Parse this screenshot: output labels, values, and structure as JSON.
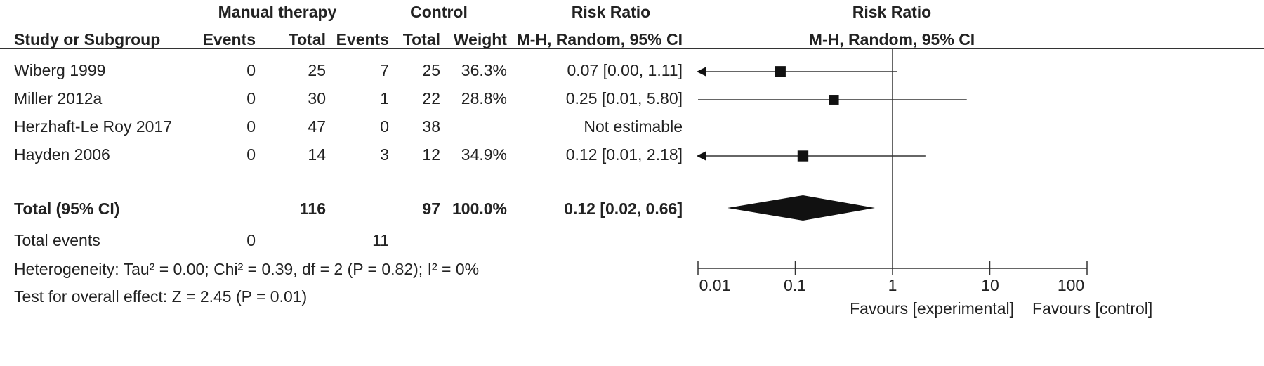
{
  "header": {
    "group_experimental": "Manual therapy",
    "group_control": "Control",
    "risk_ratio_left": "Risk Ratio",
    "risk_ratio_right": "Risk Ratio",
    "col_study": "Study or Subgroup",
    "col_events_exp": "Events",
    "col_total_exp": "Total",
    "col_events_ctl": "Events",
    "col_total_ctl": "Total",
    "col_weight": "Weight",
    "col_method_left": "M-H, Random, 95% CI",
    "col_method_right": "M-H, Random, 95% CI"
  },
  "studies": [
    {
      "name": "Wiberg 1999",
      "events_exp": "0",
      "total_exp": "25",
      "events_ctl": "7",
      "total_ctl": "25",
      "weight": "36.3%",
      "ci_text": "0.07 [0.00, 1.11]"
    },
    {
      "name": "Miller 2012a",
      "events_exp": "0",
      "total_exp": "30",
      "events_ctl": "1",
      "total_ctl": "22",
      "weight": "28.8%",
      "ci_text": "0.25 [0.01, 5.80]"
    },
    {
      "name": "Herzhaft-Le Roy 2017",
      "events_exp": "0",
      "total_exp": "47",
      "events_ctl": "0",
      "total_ctl": "38",
      "weight": "",
      "ci_text": "Not estimable"
    },
    {
      "name": "Hayden 2006",
      "events_exp": "0",
      "total_exp": "14",
      "events_ctl": "3",
      "total_ctl": "12",
      "weight": "34.9%",
      "ci_text": "0.12 [0.01, 2.18]"
    }
  ],
  "total": {
    "label": "Total (95% CI)",
    "total_exp": "116",
    "total_ctl": "97",
    "weight": "100.0%",
    "ci_text": "0.12 [0.02, 0.66]"
  },
  "total_events": {
    "label": "Total events",
    "events_exp": "0",
    "events_ctl": "11"
  },
  "heterogeneity": "Heterogeneity: Tau² = 0.00; Chi² = 0.39, df = 2 (P = 0.82); I² = 0%",
  "overall_effect": "Test for overall effect: Z = 2.45 (P = 0.01)",
  "axis": {
    "tick_labels": [
      "0.01",
      "0.1",
      "1",
      "10",
      "100"
    ],
    "favours_left": "Favours [experimental]",
    "favours_right": "Favours [control]"
  },
  "chart_data": {
    "type": "forest",
    "scale": "log",
    "xlim": [
      0.01,
      100
    ],
    "ticks": [
      0.01,
      0.1,
      1,
      10,
      100
    ],
    "reference_line": 1,
    "studies": [
      {
        "name": "Wiberg 1999",
        "estimate": 0.07,
        "lower": 0.0,
        "upper": 1.11,
        "weight": 36.3,
        "lower_clipped": true
      },
      {
        "name": "Miller 2012a",
        "estimate": 0.25,
        "lower": 0.01,
        "upper": 5.8,
        "weight": 28.8,
        "lower_clipped": false
      },
      {
        "name": "Herzhaft-Le Roy 2017",
        "estimate": null,
        "lower": null,
        "upper": null,
        "weight": null,
        "lower_clipped": false
      },
      {
        "name": "Hayden 2006",
        "estimate": 0.12,
        "lower": 0.01,
        "upper": 2.18,
        "weight": 34.9,
        "lower_clipped": true
      }
    ],
    "pooled": {
      "estimate": 0.12,
      "lower": 0.02,
      "upper": 0.66
    }
  }
}
